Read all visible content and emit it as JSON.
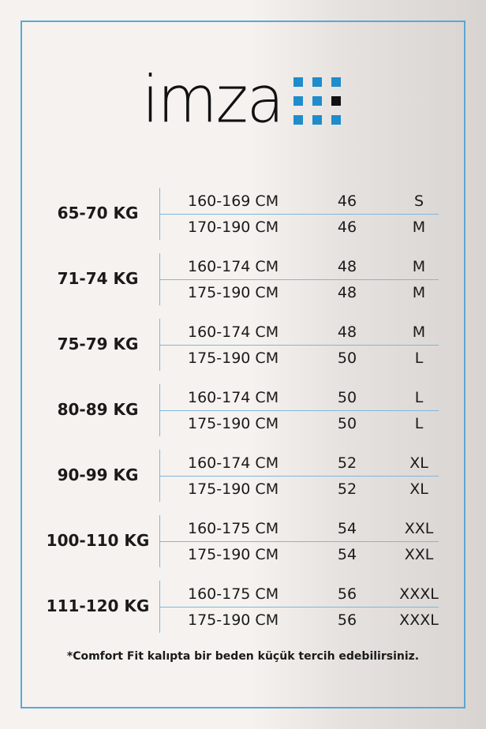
{
  "brand": {
    "logo_text": "imza",
    "accent": "#1f8ccb",
    "border": "#5aa7d4"
  },
  "groups": [
    {
      "weight": "65-70 KG",
      "rows": [
        {
          "height": "160-169 CM",
          "number": "46",
          "size": "S"
        },
        {
          "height": "170-190 CM",
          "number": "46",
          "size": "M"
        }
      ]
    },
    {
      "weight": "71-74 KG",
      "rows": [
        {
          "height": "160-174 CM",
          "number": "48",
          "size": "M"
        },
        {
          "height": "175-190 CM",
          "number": "48",
          "size": "M"
        }
      ]
    },
    {
      "weight": "75-79 KG",
      "rows": [
        {
          "height": "160-174 CM",
          "number": "48",
          "size": "M"
        },
        {
          "height": "175-190 CM",
          "number": "50",
          "size": "L"
        }
      ]
    },
    {
      "weight": "80-89 KG",
      "rows": [
        {
          "height": "160-174 CM",
          "number": "50",
          "size": "L"
        },
        {
          "height": "175-190 CM",
          "number": "50",
          "size": "L"
        }
      ]
    },
    {
      "weight": "90-99 KG",
      "rows": [
        {
          "height": "160-174 CM",
          "number": "52",
          "size": "XL"
        },
        {
          "height": "175-190 CM",
          "number": "52",
          "size": "XL"
        }
      ]
    },
    {
      "weight": "100-110 KG",
      "rows": [
        {
          "height": "160-175 CM",
          "number": "54",
          "size": "XXL"
        },
        {
          "height": "175-190 CM",
          "number": "54",
          "size": "XXL"
        }
      ]
    },
    {
      "weight": "111-120 KG",
      "rows": [
        {
          "height": "160-175 CM",
          "number": "56",
          "size": "XXXL"
        },
        {
          "height": "175-190 CM",
          "number": "56",
          "size": "XXXL"
        }
      ]
    }
  ],
  "note": "*Comfort Fit kalıpta bir beden küçük tercih edebilirsiniz."
}
